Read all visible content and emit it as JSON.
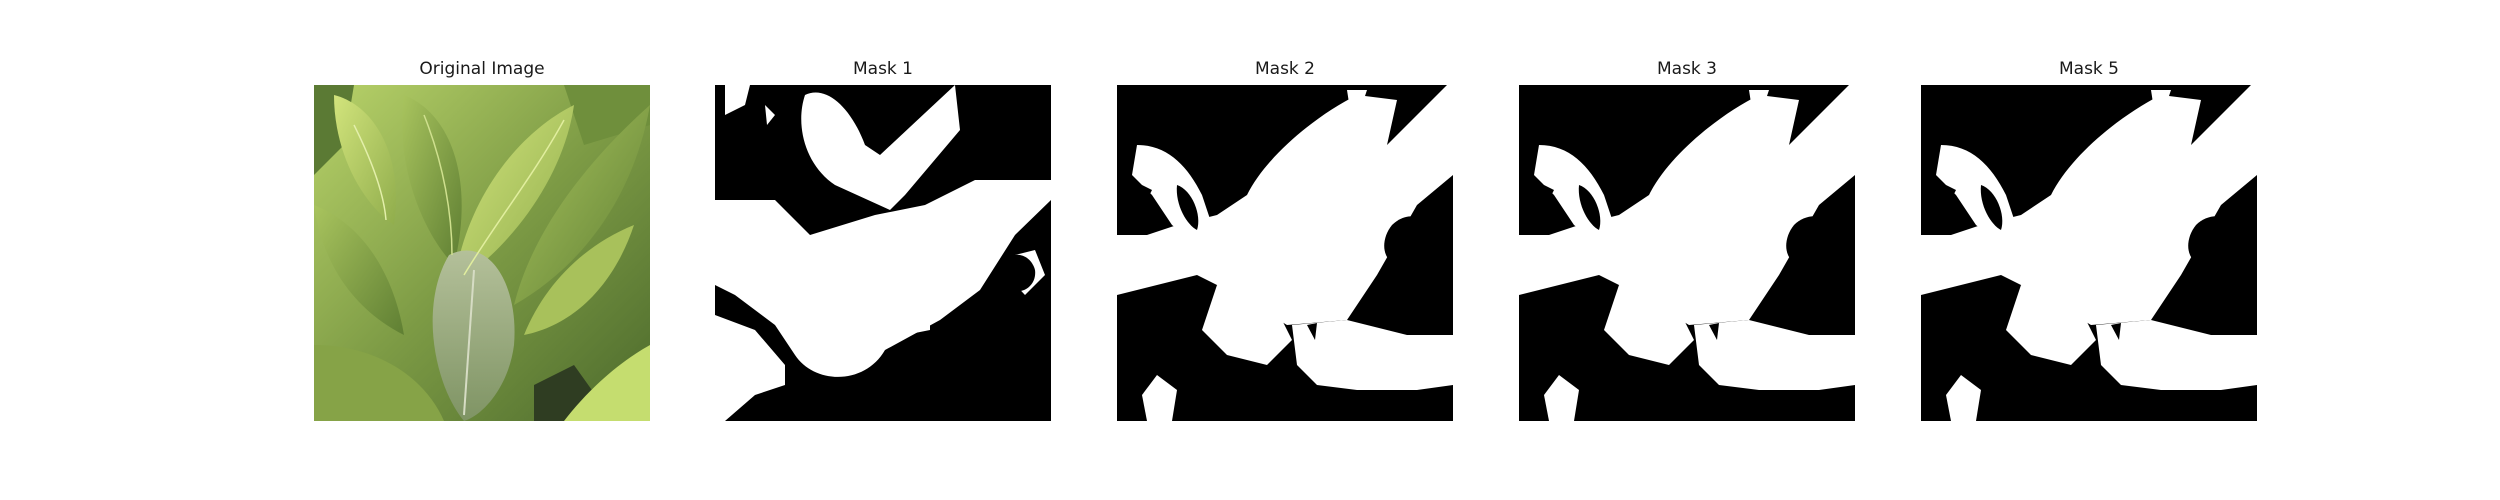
{
  "figure": {
    "panels": [
      {
        "title": "Original Image",
        "kind": "photo"
      },
      {
        "title": "Mask 1",
        "kind": "mask"
      },
      {
        "title": "Mask 2",
        "kind": "mask"
      },
      {
        "title": "Mask 3",
        "kind": "mask"
      },
      {
        "title": "Mask 5",
        "kind": "mask"
      }
    ]
  },
  "colors": {
    "mask_foreground": "#ffffff",
    "mask_background": "#000000",
    "leaf_light": "#c9de72",
    "leaf_mid": "#8fae4e",
    "leaf_dark": "#4f6b2d",
    "leaf_gray": "#9bac84"
  }
}
